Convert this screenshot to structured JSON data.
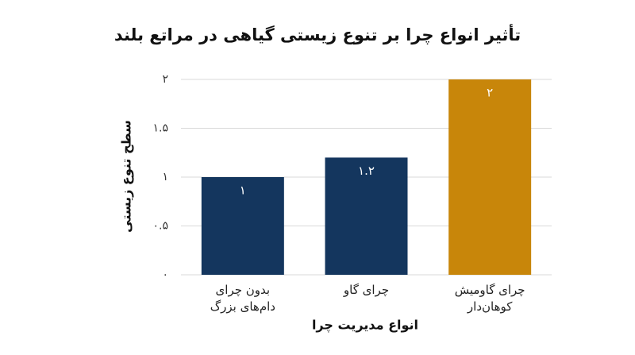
{
  "chart_data": {
    "type": "bar",
    "title": "تأثیر انواع چرا بر تنوع زیستی گیاهی در مراتع بلند",
    "x_label": "انواع مدیریت چرا",
    "y_label": "سطح تنوع زیستی",
    "categories": [
      "بدون چرای دام‌های بزرگ",
      "چرای گاو",
      "چرای گاومیش کوهان‌دار"
    ],
    "values": [
      1,
      1.2,
      2
    ],
    "value_labels": [
      "۱",
      "۱.۲",
      "۲"
    ],
    "colors": [
      "#14365e",
      "#14365e",
      "#c8860a"
    ],
    "ylim": [
      0,
      2
    ],
    "yticks": [
      {
        "value": 0,
        "label": "۰"
      },
      {
        "value": 0.5,
        "label": "۰.۵"
      },
      {
        "value": 1,
        "label": "۱"
      },
      {
        "value": 1.5,
        "label": "۱.۵"
      },
      {
        "value": 2,
        "label": "۲"
      }
    ],
    "grid": true
  }
}
